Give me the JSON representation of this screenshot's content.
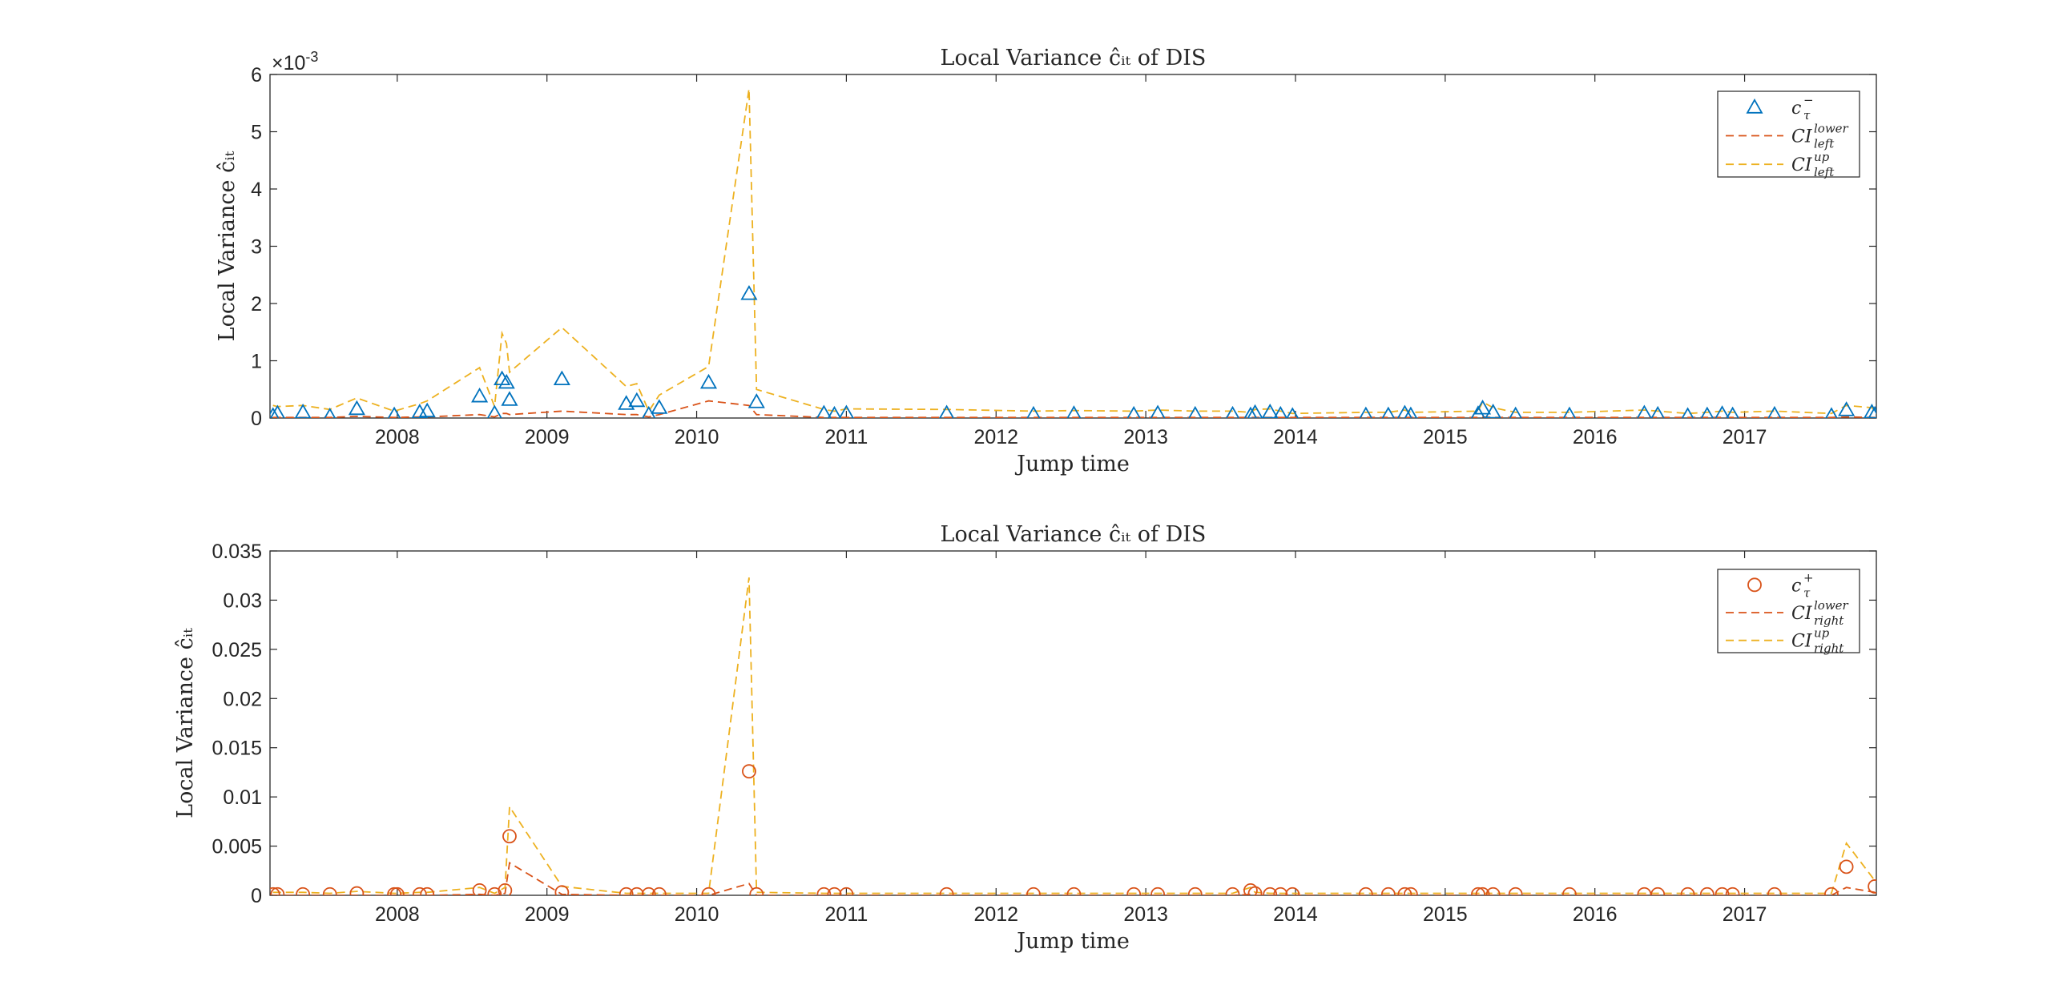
{
  "chart_data": [
    {
      "type": "scatter",
      "title": "Local Variance ĉᵢₜ of DIS",
      "xlabel": "Jump time",
      "ylabel": "Local Variance ĉᵢₜ",
      "exponent_label": "×10",
      "exponent_value": "-3",
      "xlim": [
        2007.15,
        2017.88
      ],
      "ylim": [
        0,
        6
      ],
      "x_ticks": [
        "2008",
        "2009",
        "2010",
        "2011",
        "2012",
        "2013",
        "2014",
        "2015",
        "2016",
        "2017"
      ],
      "y_ticks": [
        "0",
        "1",
        "2",
        "3",
        "4",
        "5",
        "6"
      ],
      "grid": false,
      "legend_position": "top-right",
      "legend": [
        {
          "label": "c",
          "sup": "−",
          "sub": "τ",
          "marker": "triangle",
          "color": "#0072BD"
        },
        {
          "label": "CI",
          "sup": "lower",
          "sub": "left",
          "style": "dashed",
          "color": "#D95319"
        },
        {
          "label": "CI",
          "sup": "up",
          "sub": "left",
          "style": "dashed",
          "color": "#EDB120"
        }
      ],
      "x": [
        2007.17,
        2007.2,
        2007.37,
        2007.55,
        2007.73,
        2007.98,
        2008.15,
        2008.2,
        2008.55,
        2008.65,
        2008.7,
        2008.73,
        2008.75,
        2009.1,
        2009.53,
        2009.6,
        2009.68,
        2009.75,
        2010.08,
        2010.35,
        2010.4,
        2010.85,
        2010.92,
        2011.0,
        2011.67,
        2012.25,
        2012.52,
        2012.92,
        2013.08,
        2013.33,
        2013.58,
        2013.7,
        2013.73,
        2013.83,
        2013.9,
        2013.98,
        2014.47,
        2014.62,
        2014.73,
        2014.77,
        2015.22,
        2015.25,
        2015.32,
        2015.47,
        2015.83,
        2016.33,
        2016.42,
        2016.62,
        2016.75,
        2016.85,
        2016.92,
        2017.2,
        2017.58,
        2017.68,
        2017.85,
        2017.87
      ],
      "series": [
        {
          "values": [
            0.04,
            0.08,
            0.1,
            0.03,
            0.16,
            0.05,
            0.1,
            0.12,
            0.38,
            0.08,
            0.68,
            0.62,
            0.32,
            0.68,
            0.25,
            0.3,
            0.06,
            0.18,
            0.62,
            2.17,
            0.28,
            0.08,
            0.06,
            0.08,
            0.08,
            0.06,
            0.07,
            0.06,
            0.08,
            0.06,
            0.06,
            0.05,
            0.09,
            0.1,
            0.06,
            0.04,
            0.05,
            0.05,
            0.08,
            0.05,
            0.07,
            0.17,
            0.1,
            0.05,
            0.05,
            0.08,
            0.06,
            0.04,
            0.05,
            0.07,
            0.05,
            0.06,
            0.04,
            0.14,
            0.1,
            0.06
          ]
        },
        {
          "values": [
            0.01,
            0.01,
            0.01,
            0.01,
            0.03,
            0.01,
            0.02,
            0.02,
            0.06,
            0.02,
            0.08,
            0.08,
            0.06,
            0.12,
            0.06,
            0.06,
            0.02,
            0.06,
            0.3,
            0.22,
            0.06,
            0.01,
            0.01,
            0.01,
            0.01,
            0.01,
            0.01,
            0.01,
            0.01,
            0.01,
            0.01,
            0.01,
            0.01,
            0.01,
            0.01,
            0.01,
            0.01,
            0.01,
            0.01,
            0.01,
            0.01,
            0.02,
            0.01,
            0.01,
            0.01,
            0.01,
            0.01,
            0.01,
            0.01,
            0.01,
            0.01,
            0.01,
            0.01,
            0.02,
            0.01,
            0.01
          ]
        },
        {
          "values": [
            0.22,
            0.2,
            0.22,
            0.15,
            0.35,
            0.12,
            0.25,
            0.3,
            0.88,
            0.2,
            1.48,
            1.3,
            0.8,
            1.58,
            0.55,
            0.6,
            0.12,
            0.4,
            0.9,
            5.75,
            0.5,
            0.15,
            0.12,
            0.16,
            0.15,
            0.12,
            0.13,
            0.12,
            0.14,
            0.12,
            0.12,
            0.1,
            0.15,
            0.16,
            0.12,
            0.08,
            0.1,
            0.1,
            0.14,
            0.1,
            0.12,
            0.28,
            0.18,
            0.1,
            0.1,
            0.14,
            0.12,
            0.08,
            0.1,
            0.12,
            0.1,
            0.12,
            0.08,
            0.22,
            0.18,
            0.12
          ]
        }
      ]
    },
    {
      "type": "scatter",
      "title": "Local Variance ĉᵢₜ of DIS",
      "xlabel": "Jump time",
      "ylabel": "Local Variance ĉᵢₜ",
      "xlim": [
        2007.15,
        2017.88
      ],
      "ylim": [
        0,
        0.035
      ],
      "x_ticks": [
        "2008",
        "2009",
        "2010",
        "2011",
        "2012",
        "2013",
        "2014",
        "2015",
        "2016",
        "2017"
      ],
      "y_ticks": [
        "0",
        "0.005",
        "0.01",
        "0.015",
        "0.02",
        "0.025",
        "0.03",
        "0.035"
      ],
      "grid": false,
      "legend_position": "top-right",
      "legend": [
        {
          "label": "c",
          "sup": "+",
          "sub": "τ",
          "marker": "circle",
          "color": "#D95319"
        },
        {
          "label": "CI",
          "sup": "lower",
          "sub": "right",
          "style": "dashed",
          "color": "#D95319"
        },
        {
          "label": "CI",
          "sup": "up",
          "sub": "right",
          "style": "dashed",
          "color": "#EDB120"
        }
      ],
      "x": [
        2007.17,
        2007.2,
        2007.37,
        2007.55,
        2007.73,
        2007.98,
        2008.0,
        2008.15,
        2008.2,
        2008.55,
        2008.65,
        2008.72,
        2008.75,
        2009.1,
        2009.53,
        2009.6,
        2009.68,
        2009.75,
        2010.08,
        2010.35,
        2010.4,
        2010.85,
        2010.92,
        2011.0,
        2011.67,
        2012.25,
        2012.52,
        2012.92,
        2013.08,
        2013.33,
        2013.58,
        2013.7,
        2013.73,
        2013.83,
        2013.9,
        2013.98,
        2014.47,
        2014.62,
        2014.73,
        2014.77,
        2015.22,
        2015.25,
        2015.32,
        2015.47,
        2015.83,
        2016.33,
        2016.42,
        2016.62,
        2016.75,
        2016.85,
        2016.92,
        2017.2,
        2017.58,
        2017.68,
        2017.87
      ],
      "series": [
        {
          "values": [
            0.0001,
            0.0001,
            0.0001,
            0.0001,
            0.0002,
            0.0001,
            0.0001,
            0.0001,
            0.0001,
            0.0005,
            0.0001,
            0.0005,
            0.006,
            0.0003,
            0.0001,
            0.0001,
            0.0001,
            0.0001,
            0.0001,
            0.0126,
            0.0001,
            0.0001,
            0.0001,
            0.0001,
            0.0001,
            0.0001,
            0.0001,
            0.0001,
            0.0001,
            0.0001,
            0.0001,
            0.0005,
            0.0002,
            0.0001,
            0.0001,
            0.0001,
            0.0001,
            0.0001,
            0.0001,
            0.0001,
            0.0001,
            0.0001,
            0.0001,
            0.0001,
            0.0001,
            0.0001,
            0.0001,
            0.0001,
            0.0001,
            0.0001,
            0.0001,
            0.0001,
            0.0001,
            0.0029,
            0.0009
          ]
        },
        {
          "values": [
            0.0,
            0.0,
            0.0,
            0.0,
            0.0,
            0.0,
            0.0,
            0.0,
            0.0,
            0.0001,
            0.0,
            0.0002,
            0.0033,
            0.0001,
            0.0,
            0.0,
            0.0,
            0.0,
            0.0,
            0.0012,
            0.0,
            0.0,
            0.0,
            0.0,
            0.0,
            0.0,
            0.0,
            0.0,
            0.0,
            0.0,
            0.0,
            0.0001,
            0.0,
            0.0,
            0.0,
            0.0,
            0.0,
            0.0,
            0.0,
            0.0,
            0.0,
            0.0,
            0.0,
            0.0,
            0.0,
            0.0,
            0.0,
            0.0,
            0.0,
            0.0,
            0.0,
            0.0,
            0.0,
            0.0008,
            0.0003
          ]
        },
        {
          "values": [
            0.0003,
            0.0003,
            0.0003,
            0.0002,
            0.0004,
            0.0002,
            0.0002,
            0.0003,
            0.0003,
            0.0008,
            0.0002,
            0.0008,
            0.009,
            0.0009,
            0.0002,
            0.0002,
            0.0002,
            0.0002,
            0.0002,
            0.0323,
            0.0003,
            0.0002,
            0.0002,
            0.0002,
            0.0002,
            0.0002,
            0.0002,
            0.0002,
            0.0002,
            0.0002,
            0.0002,
            0.0008,
            0.0003,
            0.0002,
            0.0002,
            0.0002,
            0.0002,
            0.0002,
            0.0002,
            0.0002,
            0.0002,
            0.0002,
            0.0002,
            0.0002,
            0.0002,
            0.0002,
            0.0002,
            0.0002,
            0.0002,
            0.0002,
            0.0002,
            0.0002,
            0.0002,
            0.0053,
            0.0015
          ]
        }
      ]
    }
  ]
}
